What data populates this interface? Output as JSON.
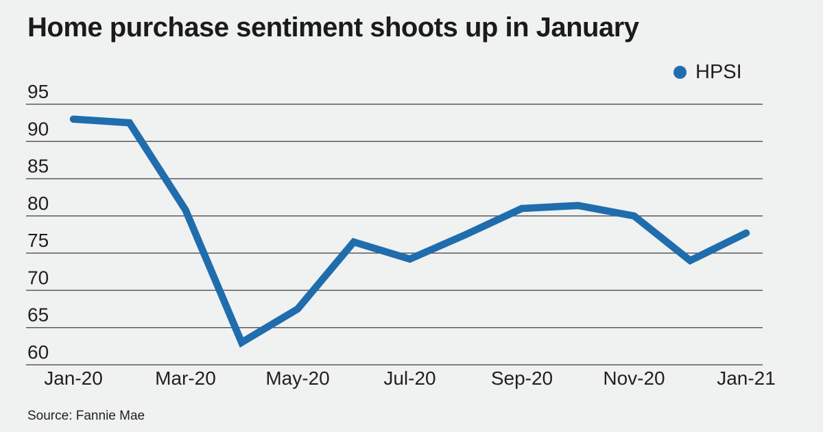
{
  "title": "Home purchase sentiment shoots up in January",
  "legend": {
    "label": "HPSI"
  },
  "source": {
    "text": "Source: Fannie Mae"
  },
  "colors": {
    "background": "#f0f1f1",
    "line": "#1f6dad",
    "grid": "#58595b",
    "text": "#231f20"
  },
  "chart_data": {
    "type": "line",
    "title": "Home purchase sentiment shoots up in January",
    "series": [
      {
        "name": "HPSI",
        "values": [
          93.0,
          92.5,
          80.8,
          63.0,
          67.5,
          76.5,
          74.2,
          77.5,
          81.0,
          81.4,
          80.0,
          74.0,
          77.7
        ]
      }
    ],
    "categories": [
      "Jan-20",
      "Feb-20",
      "Mar-20",
      "Apr-20",
      "May-20",
      "Jun-20",
      "Jul-20",
      "Aug-20",
      "Sep-20",
      "Oct-20",
      "Nov-20",
      "Dec-20",
      "Jan-21"
    ],
    "xtick_indices": [
      0,
      2,
      4,
      6,
      8,
      10,
      12
    ],
    "xtick_labels": [
      "Jan-20",
      "Mar-20",
      "May-20",
      "Jul-20",
      "Sep-20",
      "Nov-20",
      "Jan-21"
    ],
    "yticks": [
      60,
      65,
      70,
      75,
      80,
      85,
      90,
      95
    ],
    "ylim": [
      60,
      95
    ],
    "grid": "horizontal",
    "legend_position": "top-right",
    "xlabel": "",
    "ylabel": ""
  }
}
